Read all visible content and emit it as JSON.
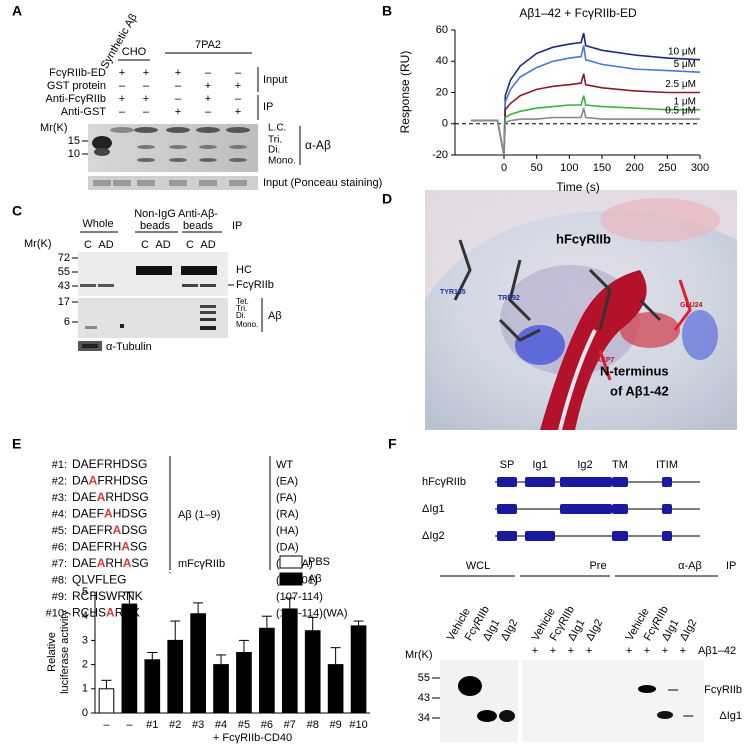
{
  "panel_letters": [
    "A",
    "B",
    "C",
    "D",
    "E",
    "F"
  ],
  "A": {
    "synthetic": "Synthetic Aβ",
    "cho": "CHO",
    "pa2": "7PA2",
    "rows": [
      {
        "label": "FcγRIIb-ED",
        "signs": [
          "+",
          "+",
          "+",
          "–",
          "–"
        ]
      },
      {
        "label": "GST protein",
        "signs": [
          "–",
          "–",
          "–",
          "+",
          "+"
        ]
      },
      {
        "label": "Anti-FcγRIIb",
        "signs": [
          "+",
          "+",
          "–",
          "+",
          "–"
        ]
      },
      {
        "label": "Anti-GST",
        "signs": [
          "–",
          "–",
          "+",
          "–",
          "+"
        ]
      }
    ],
    "input": "Input",
    "ip": "IP",
    "mr": "Mr(K)",
    "markers": [
      "15",
      "10"
    ],
    "bands": [
      "L.C.",
      "Tri.",
      "Di.",
      "Mono."
    ],
    "antibody": "α-Aβ",
    "ponceau": "Input (Ponceau staining)"
  },
  "C": {
    "whole": "Whole",
    "non_igg": [
      "Non-IgG",
      "beads"
    ],
    "anti": [
      "Anti-Aβ-",
      "beads"
    ],
    "ip": "IP",
    "lanes": [
      "C",
      "AD",
      "C",
      "AD",
      "C",
      "AD"
    ],
    "mr": "Mr(K)",
    "markers": [
      "72",
      "55",
      "43",
      "17",
      "6"
    ],
    "right": [
      "HC",
      "FcγRIIb"
    ],
    "abeta_bands": [
      "Tet.",
      "Tri.",
      "Di.",
      "Mono."
    ],
    "abeta": "Aβ",
    "tubulin": "α-Tubulin"
  },
  "D": {
    "protein": "hFcγRIIb",
    "terminus": [
      "N-terminus",
      "of Aβ1-42"
    ],
    "residues": [
      "TYR165",
      "TRP92",
      "GLU24",
      "ASP7"
    ]
  },
  "E": {
    "mutants": [
      {
        "id": "#1:",
        "parts": [
          "DAEFRHDSG"
        ]
      },
      {
        "id": "#2:",
        "parts": [
          "DA",
          "A",
          "FRHDSG"
        ]
      },
      {
        "id": "#3:",
        "parts": [
          "DAE",
          "A",
          "RHDSG"
        ]
      },
      {
        "id": "#4:",
        "parts": [
          "DAEF",
          "A",
          "HDSG"
        ]
      },
      {
        "id": "#5:",
        "parts": [
          "DAEFR",
          "A",
          "DSG"
        ]
      },
      {
        "id": "#6:",
        "parts": [
          "DAEFRH",
          "A",
          "SG"
        ]
      },
      {
        "id": "#7:",
        "parts": [
          "DAE",
          "A",
          "RH",
          "A",
          "SG"
        ]
      },
      {
        "id": "#8:",
        "parts": [
          "QLVFLEG"
        ]
      },
      {
        "id": "#9:",
        "parts": [
          "RCHSWRNK"
        ]
      },
      {
        "id": "#10:",
        "parts": [
          "RCHS",
          "A",
          "RNK"
        ]
      }
    ],
    "groups": [
      "Aβ (1–9)",
      "mFcγRIIb"
    ],
    "notes": [
      "WT",
      "(EA)",
      "(FA)",
      "(RA)",
      "(HA)",
      "(DA)",
      "(FDAA)",
      "(95-101)",
      "(107-114)",
      "(107-114)(WA)"
    ]
  },
  "F": {
    "domains": [
      "SP",
      "Ig1",
      "Ig2",
      "TM",
      "ITIM"
    ],
    "constructs": [
      "hFcγRIIb",
      "ΔIg1",
      "ΔIg2"
    ],
    "groups": [
      "WCL",
      "Pre",
      "α-Aβ"
    ],
    "ip": "IP",
    "lanes": [
      "Vehicle",
      "FcγRIIb",
      "ΔIg1",
      "ΔIg2",
      "Vehicle",
      "FcγRIIb",
      "ΔIg1",
      "ΔIg2",
      "Vehicle",
      "FcγRIIb",
      "ΔIg1",
      "ΔIg2"
    ],
    "plus": [
      "+",
      "+",
      "+",
      "+",
      "+",
      "+",
      "+",
      "+"
    ],
    "abeta": "Aβ1–42",
    "mr": "Mr(K)",
    "markers": [
      "55",
      "43",
      "34"
    ],
    "bands": [
      "FcγRIIb",
      "ΔIg1"
    ]
  },
  "chart_data": [
    {
      "type": "line",
      "title": "Aβ1–42 + FcγRIIb-ED",
      "x_label": "Time (s)",
      "y_label": "Response (RU)",
      "x": [
        -50,
        -10,
        0,
        2,
        10,
        25,
        50,
        75,
        100,
        118,
        122,
        125,
        150,
        200,
        250,
        300
      ],
      "series": [
        {
          "name": "10 μM",
          "color": "#1f2a7a",
          "values": [
            2,
            2,
            -20,
            18,
            28,
            37,
            45,
            49,
            51,
            52,
            58,
            50,
            47,
            44,
            42,
            41
          ]
        },
        {
          "name": "5 μM",
          "color": "#4a78d6",
          "values": [
            2,
            2,
            -20,
            14,
            22,
            30,
            36,
            40,
            42,
            43,
            50,
            41,
            38,
            35,
            34,
            33
          ]
        },
        {
          "name": "2.5 μM",
          "color": "#8b1a2b",
          "values": [
            2,
            2,
            -20,
            9,
            13,
            18,
            22,
            24,
            25,
            26,
            32,
            25,
            23,
            21,
            20,
            20
          ]
        },
        {
          "name": "1 μM",
          "color": "#3cb33c",
          "values": [
            2,
            2,
            -20,
            4,
            6,
            8,
            10,
            11,
            12,
            12,
            18,
            12,
            11,
            10,
            9,
            9
          ]
        },
        {
          "name": "0.5 μM",
          "color": "#888888",
          "values": [
            2,
            2,
            -20,
            1,
            2,
            3,
            3,
            4,
            4,
            4,
            10,
            4,
            3,
            3,
            3,
            3
          ]
        }
      ],
      "xlim": [
        -75,
        300
      ],
      "xticks": [
        0,
        50,
        100,
        150,
        200,
        250,
        300
      ],
      "ylim": [
        -20,
        60
      ],
      "yticks": [
        -20,
        0,
        20,
        40,
        60
      ]
    },
    {
      "type": "bar",
      "y_label": [
        "Relative",
        "luciferase activity"
      ],
      "x_label": "+ FcγRIIb-CD40",
      "categories": [
        "–",
        "–",
        "#1",
        "#2",
        "#3",
        "#4",
        "#5",
        "#6",
        "#7",
        "#8",
        "#9",
        "#10"
      ],
      "series": [
        {
          "name": "PBS",
          "color": "#ffffff",
          "values": [
            1.0,
            null,
            null,
            null,
            null,
            null,
            null,
            null,
            null,
            null,
            null,
            null
          ],
          "errors": [
            0.35,
            null,
            null,
            null,
            null,
            null,
            null,
            null,
            null,
            null,
            null,
            null
          ]
        },
        {
          "name": "Aβ",
          "color": "#000000",
          "values": [
            null,
            4.5,
            2.2,
            3.0,
            4.1,
            2.0,
            2.5,
            3.5,
            4.3,
            3.4,
            2.0,
            3.6
          ],
          "errors": [
            null,
            0.5,
            0.3,
            0.8,
            0.45,
            0.4,
            0.5,
            0.5,
            0.45,
            0.55,
            0.7,
            0.2
          ]
        }
      ],
      "ylim": [
        0,
        5
      ],
      "yticks": [
        0,
        1,
        2,
        3,
        4,
        5
      ]
    }
  ]
}
